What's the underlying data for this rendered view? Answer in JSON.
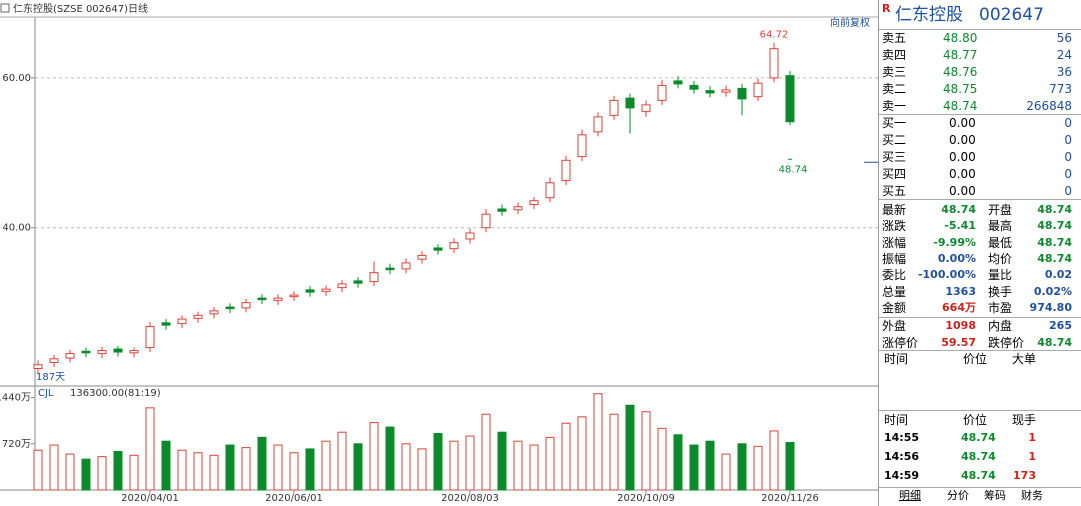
{
  "app": {
    "title": "仁东控股(SZSE 002647)",
    "period": "日线",
    "adjust": "向前复权",
    "days": "187天"
  },
  "chart_data": [
    {
      "type": "candlestick",
      "categories": [
        null,
        null,
        null,
        null,
        null,
        null,
        null,
        "2020/04/01",
        null,
        null,
        null,
        null,
        null,
        null,
        null,
        null,
        "2020/06/01",
        null,
        null,
        null,
        null,
        null,
        null,
        null,
        null,
        null,
        null,
        "2020/08/03",
        null,
        null,
        null,
        null,
        null,
        null,
        null,
        null,
        null,
        null,
        "2020/10/09",
        null,
        null,
        null,
        null,
        null,
        null,
        null,
        null,
        "2020/11/26"
      ],
      "open": [
        21.2,
        22.0,
        22.6,
        23.5,
        23.2,
        23.8,
        23.3,
        24.0,
        27.3,
        27.2,
        27.9,
        28.5,
        29.4,
        29.3,
        30.6,
        30.3,
        30.8,
        31.7,
        31.5,
        32.0,
        32.9,
        32.8,
        34.6,
        34.5,
        35.8,
        37.3,
        37.2,
        38.5,
        40.0,
        42.5,
        42.4,
        43.1,
        44.0,
        46.3,
        49.5,
        52.8,
        55.0,
        57.3,
        55.5,
        57.0,
        59.6,
        59.0,
        58.3,
        58.1,
        58.6,
        57.5,
        60.0,
        60.3
      ],
      "high": [
        22.3,
        23.0,
        23.7,
        24.0,
        24.1,
        24.2,
        24.0,
        27.4,
        27.8,
        28.3,
        28.8,
        29.4,
        29.9,
        30.5,
        31.1,
        31.1,
        31.5,
        32.2,
        32.3,
        33.0,
        33.4,
        35.5,
        35.2,
        35.9,
        36.9,
        37.8,
        38.6,
        39.9,
        42.5,
        43.1,
        43.4,
        44.1,
        46.7,
        49.6,
        53.1,
        55.4,
        57.6,
        57.9,
        57.0,
        59.7,
        60.2,
        59.6,
        58.9,
        59.0,
        59.2,
        59.9,
        64.72,
        60.9
      ],
      "low": [
        20.6,
        21.4,
        22.0,
        22.7,
        22.6,
        22.8,
        22.7,
        23.4,
        26.4,
        26.6,
        27.3,
        27.9,
        28.6,
        28.7,
        29.8,
        29.7,
        30.2,
        30.8,
        30.9,
        31.4,
        32.0,
        32.2,
        33.8,
        33.9,
        35.2,
        36.4,
        36.6,
        37.9,
        39.4,
        41.6,
        41.8,
        42.5,
        43.4,
        45.7,
        48.9,
        52.2,
        54.4,
        52.6,
        54.8,
        56.4,
        58.6,
        57.9,
        57.4,
        57.5,
        55.0,
        56.9,
        59.4,
        53.7
      ],
      "close": [
        21.7,
        22.5,
        23.2,
        23.3,
        23.6,
        23.4,
        23.6,
        26.8,
        27.0,
        27.8,
        28.3,
        28.9,
        29.2,
        30.0,
        30.4,
        30.6,
        31.0,
        31.4,
        31.8,
        32.5,
        32.6,
        34.0,
        34.4,
        35.3,
        36.3,
        37.0,
        38.0,
        39.3,
        41.8,
        42.2,
        42.8,
        43.6,
        46.0,
        49.0,
        52.4,
        54.8,
        57.0,
        56.0,
        56.4,
        59.0,
        59.2,
        58.5,
        58.0,
        58.4,
        57.2,
        59.3,
        63.9,
        54.15
      ],
      "up_color": "#e0403a",
      "down_color": "#0a8a2a",
      "ylim": [
        19,
        68
      ],
      "yticks": [
        {
          "value": 60,
          "label": "60.00"
        },
        {
          "value": 40,
          "label": "40.00"
        }
      ],
      "last_price": 48.74,
      "grid": true
    },
    {
      "type": "bar",
      "indicator": "CJL",
      "reading": "136300.00(81:19)",
      "values": [
        620,
        700,
        560,
        480,
        520,
        600,
        540,
        1280,
        760,
        620,
        580,
        540,
        700,
        660,
        820,
        700,
        580,
        640,
        760,
        900,
        720,
        1050,
        980,
        720,
        640,
        880,
        760,
        840,
        1180,
        900,
        760,
        700,
        820,
        1040,
        1140,
        1500,
        1180,
        1320,
        1220,
        960,
        860,
        700,
        760,
        560,
        720,
        680,
        920,
        740
      ],
      "ylim": [
        0,
        1620
      ],
      "yticks": [
        {
          "value": 1440,
          "label": "1440万"
        },
        {
          "value": 720,
          "label": "720万"
        }
      ]
    }
  ],
  "quote": {
    "badge": "R",
    "name": "仁东控股",
    "code": "002647",
    "asks": [
      {
        "label": "卖五",
        "price": "48.80",
        "volume": "56"
      },
      {
        "label": "卖四",
        "price": "48.77",
        "volume": "24"
      },
      {
        "label": "卖三",
        "price": "48.76",
        "volume": "36"
      },
      {
        "label": "卖二",
        "price": "48.75",
        "volume": "773"
      },
      {
        "label": "卖一",
        "price": "48.74",
        "volume": "266848"
      }
    ],
    "bids": [
      {
        "label": "买一",
        "price": "0.00",
        "volume": "0"
      },
      {
        "label": "买二",
        "price": "0.00",
        "volume": "0"
      },
      {
        "label": "买三",
        "price": "0.00",
        "volume": "0"
      },
      {
        "label": "买四",
        "price": "0.00",
        "volume": "0"
      },
      {
        "label": "买五",
        "price": "0.00",
        "volume": "0"
      }
    ],
    "stats": [
      [
        {
          "label": "最新",
          "value": "48.74",
          "color": "#0a8a2a"
        },
        {
          "label": "开盘",
          "value": "48.74",
          "color": "#0a8a2a"
        }
      ],
      [
        {
          "label": "涨跌",
          "value": "-5.41",
          "color": "#0a8a2a"
        },
        {
          "label": "最高",
          "value": "48.74",
          "color": "#0a8a2a"
        }
      ],
      [
        {
          "label": "涨幅",
          "value": "-9.99%",
          "color": "#0a8a2a"
        },
        {
          "label": "最低",
          "value": "48.74",
          "color": "#0a8a2a"
        }
      ],
      [
        {
          "label": "振幅",
          "value": "0.00%",
          "color": "#1f4fa0"
        },
        {
          "label": "均价",
          "value": "48.74",
          "color": "#0a8a2a"
        }
      ],
      [
        {
          "label": "委比",
          "value": "-100.00%",
          "color": "#1f4fa0"
        },
        {
          "label": "量比",
          "value": "0.02",
          "color": "#1f4fa0"
        }
      ],
      [
        {
          "label": "总量",
          "value": "1363",
          "color": "#1f4fa0"
        },
        {
          "label": "换手",
          "value": "0.02%",
          "color": "#1f4fa0"
        }
      ],
      [
        {
          "label": "金额",
          "value": "664万",
          "color": "#d0201a"
        },
        {
          "label": "市盈",
          "value": "974.80",
          "color": "#1f4fa0"
        }
      ],
      [
        {
          "label": "外盘",
          "value": "1098",
          "color": "#d0201a"
        },
        {
          "label": "内盘",
          "value": "265",
          "color": "#1f4fa0"
        }
      ],
      [
        {
          "label": "涨停价",
          "value": "59.57",
          "color": "#d0201a"
        },
        {
          "label": "跌停价",
          "value": "48.74",
          "color": "#0a8a2a"
        }
      ]
    ],
    "big_orders_header": [
      "时间",
      "价位",
      "大单"
    ],
    "trades_header": [
      "时间",
      "价位",
      "现手"
    ],
    "trades": [
      [
        "14:55",
        "48.74",
        "1"
      ],
      [
        "14:56",
        "48.74",
        "1"
      ],
      [
        "14:59",
        "48.74",
        "173"
      ]
    ],
    "tabs": [
      "明细",
      "分价",
      "筹码",
      "财务"
    ]
  }
}
